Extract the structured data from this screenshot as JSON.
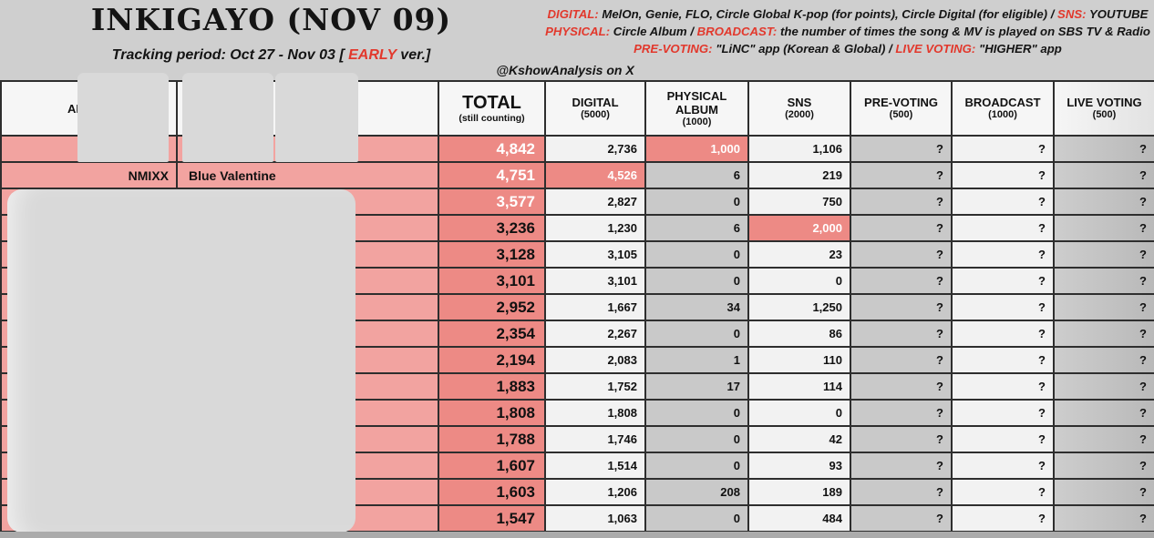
{
  "header": {
    "title": "INKIGAYO (NOV 09)",
    "tracking_prefix": "Tracking period: Oct 27 - Nov 03 [ ",
    "tracking_highlight": "EARLY",
    "tracking_suffix": " ver.]",
    "credit": "@KshowAnalysis on X",
    "legend_lines": [
      {
        "parts": [
          {
            "text": "DIGITAL:",
            "red": true
          },
          {
            "text": " MelOn, Genie, FLO, Circle Global K-pop (for points), Circle Digital (for eligible) / ",
            "red": false
          },
          {
            "text": "SNS:",
            "red": true
          },
          {
            "text": " YOUTUBE",
            "red": false
          }
        ]
      },
      {
        "parts": [
          {
            "text": "PHYSICAL:",
            "red": true
          },
          {
            "text": " Circle Album / ",
            "red": false
          },
          {
            "text": "BROADCAST:",
            "red": true
          },
          {
            "text": " the number of times the song & MV is played on SBS TV & Radio",
            "red": false
          }
        ]
      },
      {
        "parts": [
          {
            "text": "PRE-VOTING:",
            "red": true
          },
          {
            "text": " \"LiNC\" app (Korean & Global) / ",
            "red": false
          },
          {
            "text": "LIVE VOTING:",
            "red": true
          },
          {
            "text": " \"HIGHER\" app",
            "red": false
          }
        ]
      }
    ]
  },
  "table": {
    "artist_header": "ARTIST",
    "columns": [
      {
        "label": "TOTAL",
        "sub": "(still counting)"
      },
      {
        "label": "DIGITAL",
        "sub": "(5000)"
      },
      {
        "label": "PHYSICAL ALBUM",
        "sub": "(1000)"
      },
      {
        "label": "SNS",
        "sub": "(2000)"
      },
      {
        "label": "PRE-VOTING",
        "sub": "(500)"
      },
      {
        "label": "BROADCAST",
        "sub": "(1000)"
      },
      {
        "label": "LIVE VOTING",
        "sub": "(500)"
      }
    ],
    "rows": [
      {
        "artist": "",
        "title": "",
        "total": "4,842",
        "dig": "2,736",
        "phy": "1,000",
        "sns": "1,106",
        "pre": "?",
        "bro": "?",
        "live": "?",
        "top3": true,
        "hl": "phy"
      },
      {
        "artist": "NMIXX",
        "title": "Blue Valentine",
        "total": "4,751",
        "dig": "4,526",
        "phy": "6",
        "sns": "219",
        "pre": "?",
        "bro": "?",
        "live": "?",
        "top3": true,
        "hl": "dig"
      },
      {
        "artist": "",
        "title": "",
        "total": "3,577",
        "dig": "2,827",
        "phy": "0",
        "sns": "750",
        "pre": "?",
        "bro": "?",
        "live": "?",
        "top3": true,
        "hl": ""
      },
      {
        "artist": "",
        "title": "",
        "total": "3,236",
        "dig": "1,230",
        "phy": "6",
        "sns": "2,000",
        "pre": "?",
        "bro": "?",
        "live": "?",
        "top3": false,
        "hl": "sns"
      },
      {
        "artist": "",
        "title": "",
        "total": "3,128",
        "dig": "3,105",
        "phy": "0",
        "sns": "23",
        "pre": "?",
        "bro": "?",
        "live": "?",
        "top3": false,
        "hl": ""
      },
      {
        "artist": "",
        "title": "",
        "total": "3,101",
        "dig": "3,101",
        "phy": "0",
        "sns": "0",
        "pre": "?",
        "bro": "?",
        "live": "?",
        "top3": false,
        "hl": ""
      },
      {
        "artist": "",
        "title": "",
        "total": "2,952",
        "dig": "1,667",
        "phy": "34",
        "sns": "1,250",
        "pre": "?",
        "bro": "?",
        "live": "?",
        "top3": false,
        "hl": ""
      },
      {
        "artist": "",
        "title": "",
        "total": "2,354",
        "dig": "2,267",
        "phy": "0",
        "sns": "86",
        "pre": "?",
        "bro": "?",
        "live": "?",
        "top3": false,
        "hl": ""
      },
      {
        "artist": "",
        "title": "",
        "total": "2,194",
        "dig": "2,083",
        "phy": "1",
        "sns": "110",
        "pre": "?",
        "bro": "?",
        "live": "?",
        "top3": false,
        "hl": ""
      },
      {
        "artist": "",
        "title": "",
        "total": "1,883",
        "dig": "1,752",
        "phy": "17",
        "sns": "114",
        "pre": "?",
        "bro": "?",
        "live": "?",
        "top3": false,
        "hl": ""
      },
      {
        "artist": "",
        "title": "",
        "total": "1,808",
        "dig": "1,808",
        "phy": "0",
        "sns": "0",
        "pre": "?",
        "bro": "?",
        "live": "?",
        "top3": false,
        "hl": ""
      },
      {
        "artist": "",
        "title": "",
        "total": "1,788",
        "dig": "1,746",
        "phy": "0",
        "sns": "42",
        "pre": "?",
        "bro": "?",
        "live": "?",
        "top3": false,
        "hl": ""
      },
      {
        "artist": "",
        "title": "",
        "total": "1,607",
        "dig": "1,514",
        "phy": "0",
        "sns": "93",
        "pre": "?",
        "bro": "?",
        "live": "?",
        "top3": false,
        "hl": ""
      },
      {
        "artist": "",
        "title": "",
        "total": "1,603",
        "dig": "1,206",
        "phy": "208",
        "sns": "189",
        "pre": "?",
        "bro": "?",
        "live": "?",
        "top3": false,
        "hl": ""
      },
      {
        "artist": "",
        "title": "",
        "total": "1,547",
        "dig": "1,063",
        "phy": "0",
        "sns": "484",
        "pre": "?",
        "bro": "?",
        "live": "?",
        "top3": false,
        "hl": ""
      }
    ]
  },
  "colors": {
    "accent_salmon": "#ed8a85",
    "row_pink": "#f2a3a0",
    "legend_red": "#e2382c",
    "cell_gray": "#c9c9c9",
    "cell_light": "#f2f2f2",
    "sheet_bg": "#cfcfcf"
  }
}
